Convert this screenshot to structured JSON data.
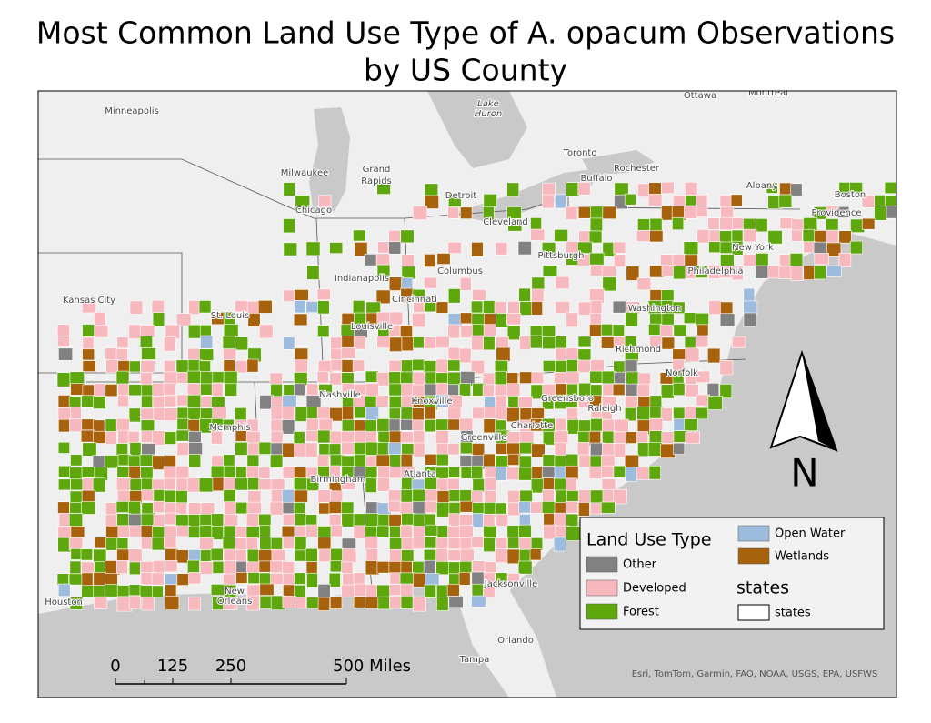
{
  "title_lines": [
    "Most Common Land Use Type of A. opacum Observations",
    "by US County"
  ],
  "map": {
    "place_labels": [
      "Minneapolis",
      "Milwaukee",
      "Grand",
      "Rapids",
      "Chicago",
      "Detroit",
      "Cleveland",
      "Lake",
      "Huron",
      "Toronto",
      "Rochester",
      "Buffalo",
      "Ottawa",
      "Montreal",
      "Albany",
      "Boston",
      "Providence",
      "New York",
      "Pittsburgh",
      "Philadelphia",
      "Indianapolis",
      "Columbus",
      "Cincinnati",
      "Louisville",
      "Kansas City",
      "St. Louis",
      "Washington",
      "Richmond",
      "Norfolk",
      "Nashville",
      "Knoxville",
      "Greensboro",
      "Raleigh",
      "Charlotte",
      "Memphis",
      "Greenville",
      "Birmingham",
      "Atlanta",
      "Jacksonville",
      "Houston",
      "New",
      "Orleans",
      "Orlando",
      "Tampa"
    ],
    "north_label": "N",
    "attribution": "Esri, TomTom, Garmin, FAO, NOAA, USGS, EPA, USFWS"
  },
  "legend": {
    "title": "Land Use Type",
    "items": [
      {
        "label": "Other",
        "color": "#818181"
      },
      {
        "label": "Developed",
        "color": "#f7b8be"
      },
      {
        "label": "Forest",
        "color": "#5ea80d"
      },
      {
        "label": "Open Water",
        "color": "#9dbbdd"
      },
      {
        "label": "Wetlands",
        "color": "#a8620b"
      }
    ],
    "states_title": "states",
    "states_item": "states"
  },
  "scale_bar": {
    "labels": [
      "0",
      "125",
      "250",
      "500 Miles"
    ]
  }
}
